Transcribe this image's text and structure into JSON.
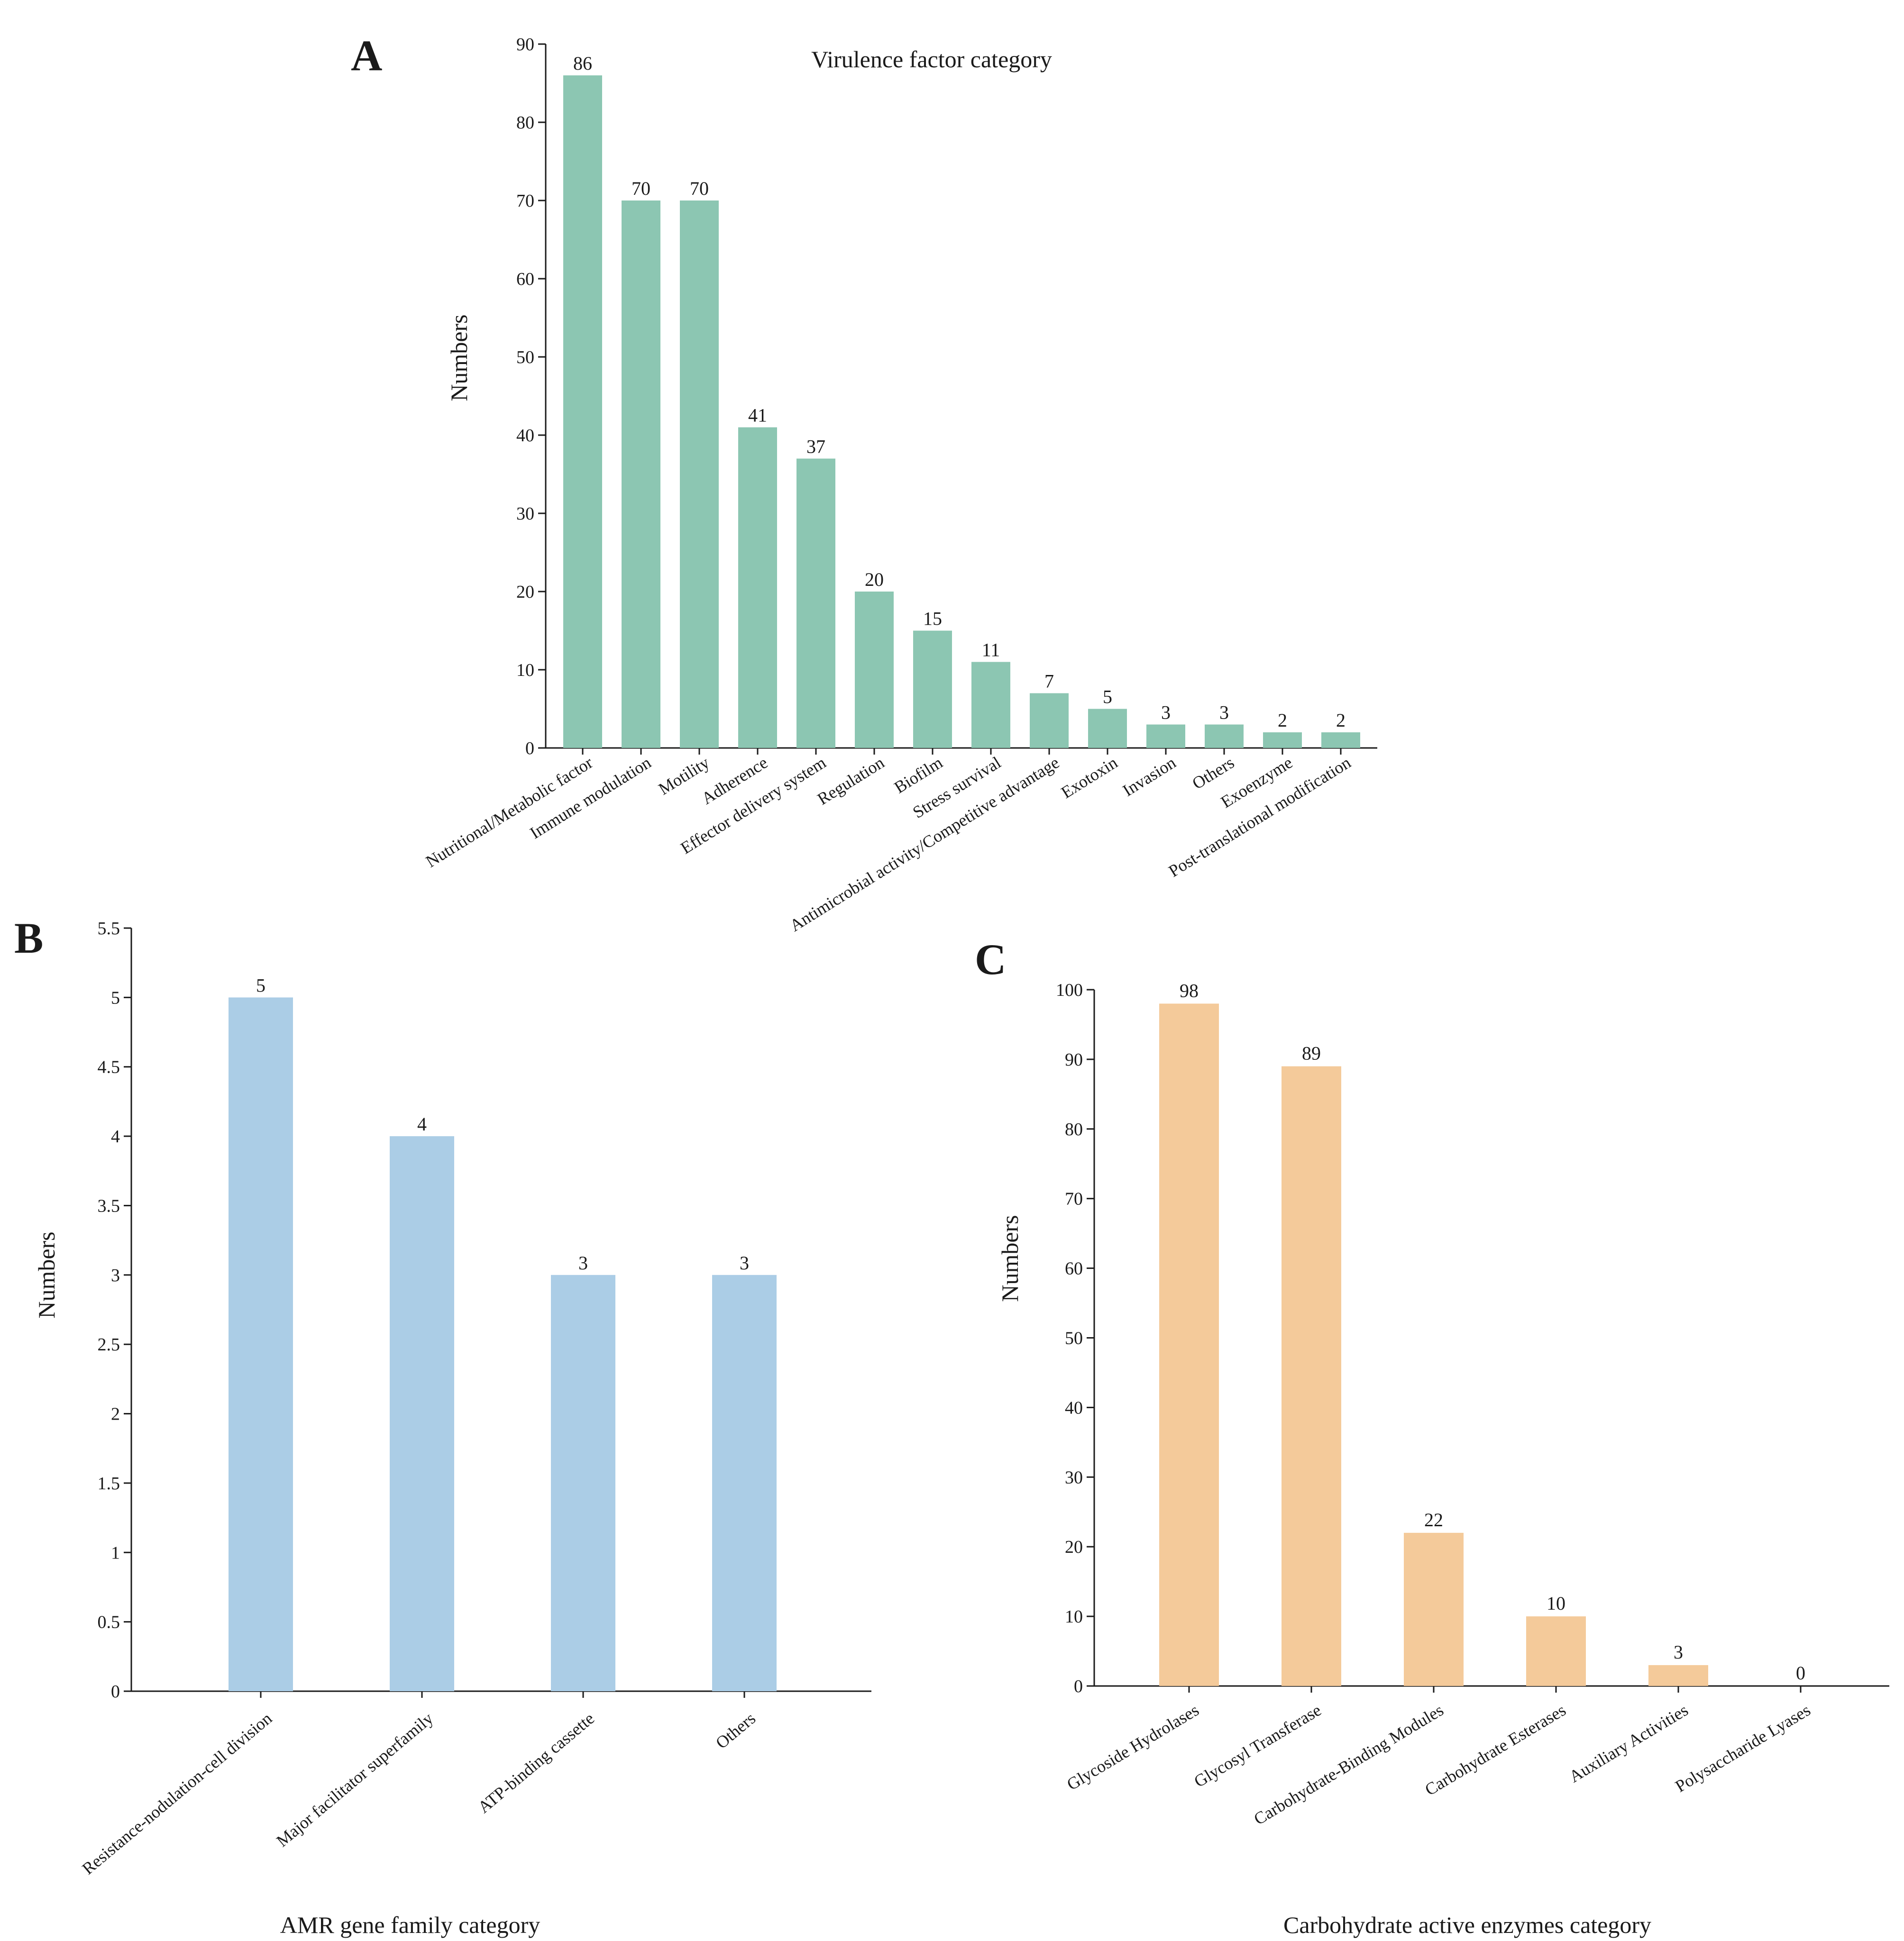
{
  "chart_data": [
    {
      "panel": "A",
      "type": "bar",
      "title": "Virulence factor category",
      "xlabel": "",
      "ylabel": "Numbers",
      "ylim": [
        0,
        90
      ],
      "yticks": [
        0,
        10,
        20,
        30,
        40,
        50,
        60,
        70,
        80,
        90
      ],
      "ytick_labels": [
        "0",
        "10",
        "20",
        "30",
        "40",
        "50",
        "60",
        "70",
        "80",
        "90"
      ],
      "color": "#8cc6b2",
      "categories": [
        "Nutritional/Metabolic factor",
        "Immune modulation",
        "Motility",
        "Adherence",
        "Effector delivery system",
        "Regulation",
        "Biofilm",
        "Stress survival",
        "Antimicrobial activity/Competitive advantage",
        "Exotoxin",
        "Invasion",
        "Others",
        "Exoenzyme",
        "Post-translational modification"
      ],
      "values": [
        86,
        70,
        70,
        41,
        37,
        20,
        15,
        11,
        7,
        5,
        3,
        3,
        2,
        2
      ],
      "value_labels": [
        "86",
        "70",
        "70",
        "41",
        "37",
        "20",
        "15",
        "11",
        "7",
        "5",
        "3",
        "3",
        "2",
        "2"
      ],
      "grid": false
    },
    {
      "panel": "B",
      "type": "bar",
      "title": "",
      "xlabel": "AMR gene family category",
      "ylabel": "Numbers",
      "ylim": [
        0,
        5.5
      ],
      "yticks": [
        0,
        0.5,
        1,
        1.5,
        2,
        2.5,
        3,
        3.5,
        4,
        4.5,
        5,
        5.5
      ],
      "ytick_labels": [
        "0",
        "0.5",
        "1",
        "1.5",
        "2",
        "2.5",
        "3",
        "3.5",
        "4",
        "4.5",
        "5",
        "5.5"
      ],
      "color": "#abcde6",
      "categories": [
        "Resistance-nodulation-cell division",
        "Major facilitator superfamily",
        "ATP-binding cassette",
        "Others"
      ],
      "values": [
        5,
        4,
        3,
        3
      ],
      "value_labels": [
        "5",
        "4",
        "3",
        "3"
      ],
      "grid": false
    },
    {
      "panel": "C",
      "type": "bar",
      "title": "",
      "xlabel": "Carbohydrate active enzymes category",
      "ylabel": "Numbers",
      "ylim": [
        0,
        100
      ],
      "yticks": [
        0,
        10,
        20,
        30,
        40,
        50,
        60,
        70,
        80,
        90,
        100
      ],
      "ytick_labels": [
        "0",
        "10",
        "20",
        "30",
        "40",
        "50",
        "60",
        "70",
        "80",
        "90",
        "100"
      ],
      "color": "#f4ca9a",
      "categories": [
        "Glycoside Hydrolases",
        "Glycosyl Transferase",
        "Carbohydrate-Binding Modules",
        "Carbohydrate Esterases",
        "Auxiliary Activities",
        "Polysaccharide Lyases"
      ],
      "values": [
        98,
        89,
        22,
        10,
        3,
        0
      ],
      "value_labels": [
        "98",
        "89",
        "22",
        "10",
        "3",
        "0"
      ],
      "grid": false
    }
  ]
}
